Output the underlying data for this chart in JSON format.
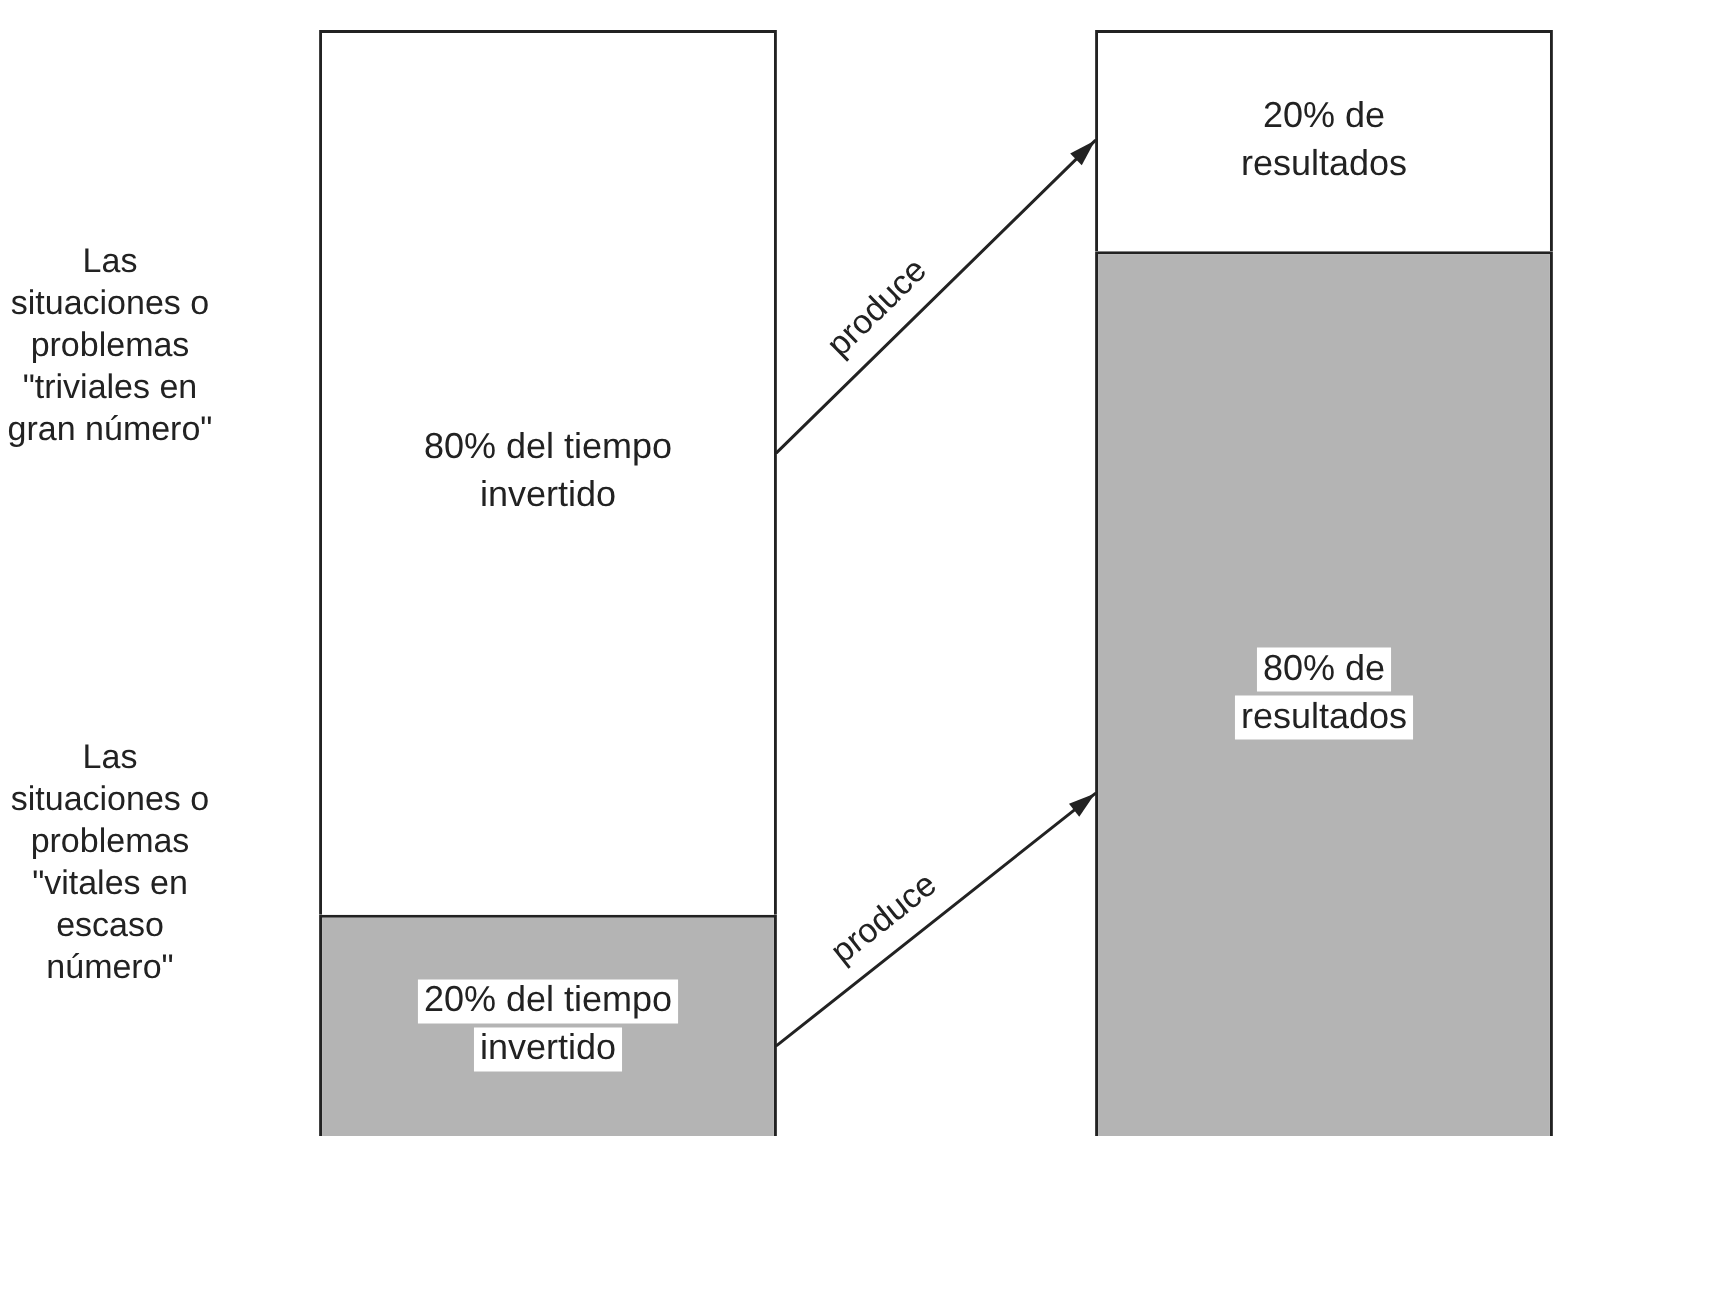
{
  "chart_data": {
    "type": "bar",
    "stacked": true,
    "categories": [
      null,
      null
    ],
    "ylim": [
      0,
      100
    ],
    "tick_labels": false,
    "series": [
      {
        "color": "#b4b4b4",
        "values": [
          20,
          80
        ],
        "value_labels": [
          "20% del tiempo invertido",
          "80% de resultados"
        ]
      },
      {
        "color": "#ffffff",
        "values": [
          80,
          20
        ],
        "value_labels": [
          "80% del tiempo invertido",
          "20% de resultados"
        ]
      }
    ],
    "annotations": [
      "Las situaciones o problemas \"triviales en gran número\"",
      "Las situaciones o problemas \"vitales en escaso número\"",
      "produce",
      "produce"
    ]
  }
}
